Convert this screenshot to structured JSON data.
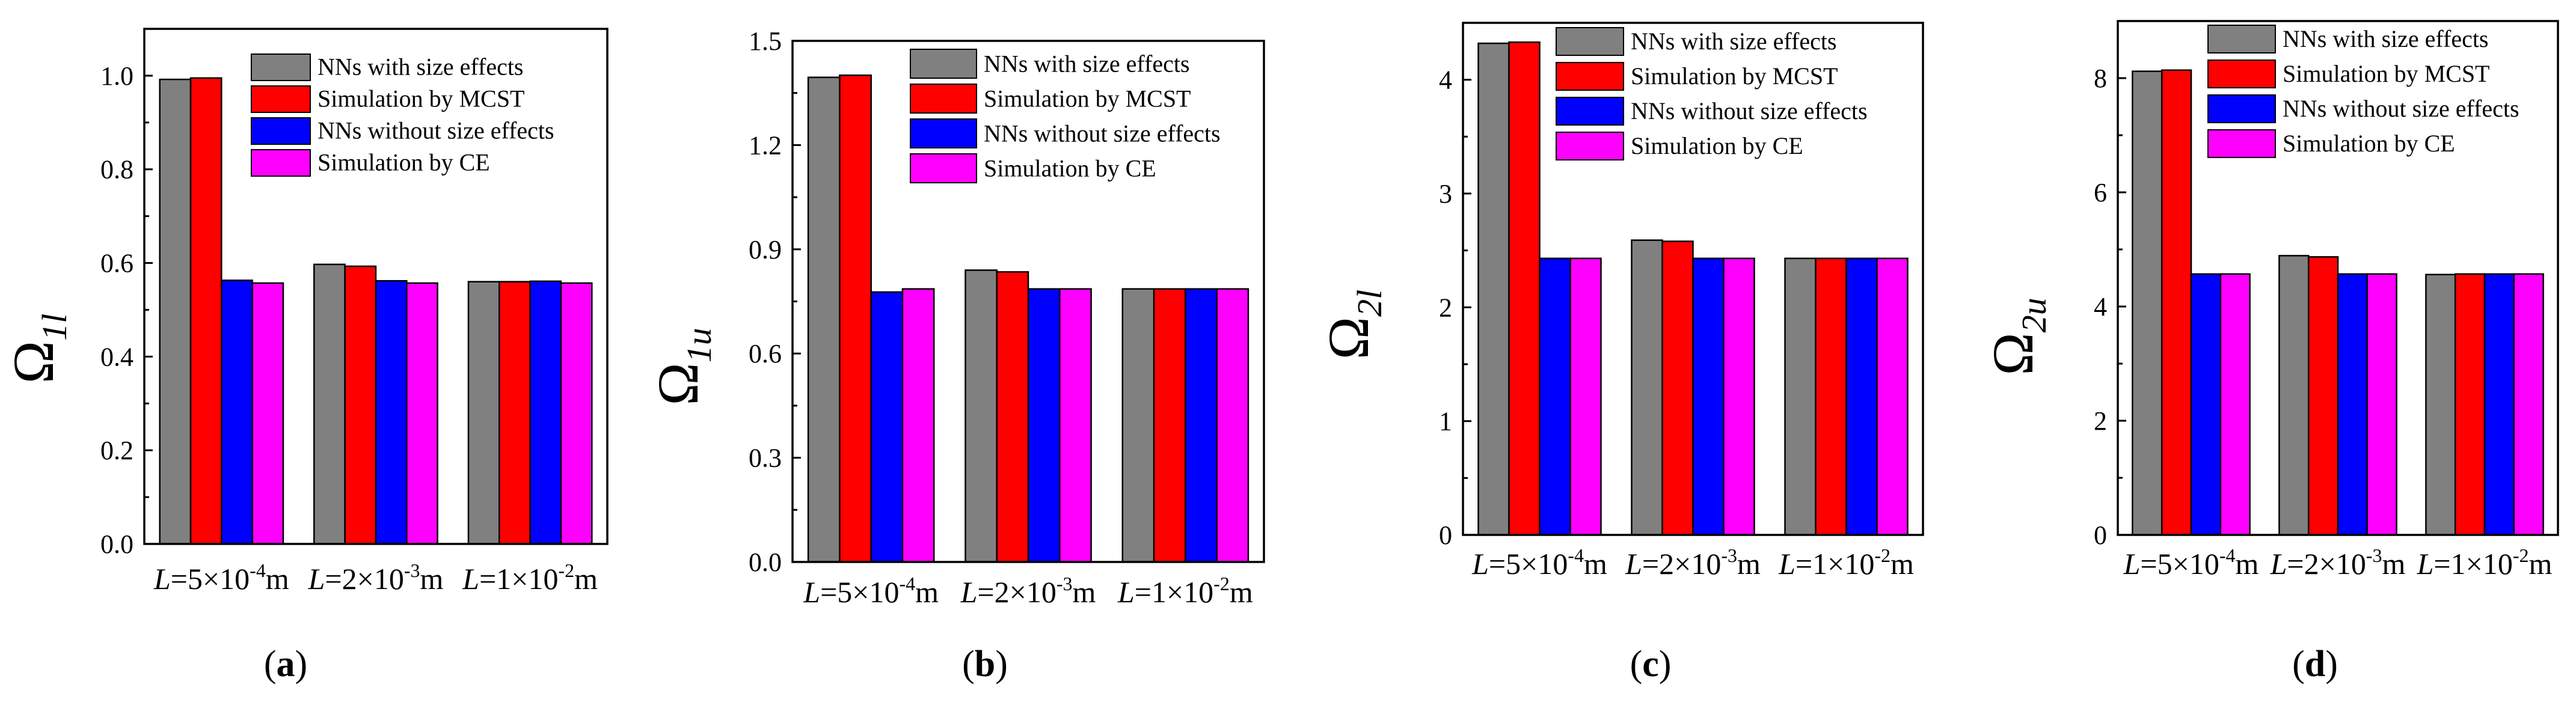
{
  "legend_labels": [
    "NNs with size effects",
    "Simulation by MCST",
    "NNs without size effects",
    "Simulation by CE"
  ],
  "series_colors": [
    "#808080",
    "#ff0000",
    "#0000ff",
    "#ff00ff"
  ],
  "chart_data": [
    {
      "type": "bar",
      "panel_label": "(a)",
      "ylabel": "Ω",
      "ylabel_sub": "1l",
      "categories": [
        "L=5×10⁻⁴m",
        "L=2×10⁻³m",
        "L=1×10⁻²m"
      ],
      "category_labels": [
        {
          "symbol": "L",
          "text": "=5×10",
          "exp": "-4",
          "unit": "m"
        },
        {
          "symbol": "L",
          "text": "=2×10",
          "exp": "-3",
          "unit": "m"
        },
        {
          "symbol": "L",
          "text": "=1×10",
          "exp": "-2",
          "unit": "m"
        }
      ],
      "ylim": [
        0,
        1.1
      ],
      "yticks": [
        0.0,
        0.2,
        0.4,
        0.6,
        0.8,
        1.0
      ],
      "ytick_labels": [
        "0.0",
        "0.2",
        "0.4",
        "0.6",
        "0.8",
        "1.0"
      ],
      "series": [
        {
          "name": "NNs with size effects",
          "values": [
            0.992,
            0.597,
            0.56
          ]
        },
        {
          "name": "Simulation by MCST",
          "values": [
            0.995,
            0.593,
            0.56
          ]
        },
        {
          "name": "NNs without size effects",
          "values": [
            0.563,
            0.562,
            0.561
          ]
        },
        {
          "name": "Simulation by CE",
          "values": [
            0.557,
            0.557,
            0.557
          ]
        }
      ],
      "legend_position": "top-right"
    },
    {
      "type": "bar",
      "panel_label": "(b)",
      "ylabel": "Ω",
      "ylabel_sub": "1u",
      "categories": [
        "L=5×10⁻⁴m",
        "L=2×10⁻³m",
        "L=1×10⁻²m"
      ],
      "category_labels": [
        {
          "symbol": "L",
          "text": "=5×10",
          "exp": "-4",
          "unit": "m"
        },
        {
          "symbol": "L",
          "text": "=2×10",
          "exp": "-3",
          "unit": "m"
        },
        {
          "symbol": "L",
          "text": "=1×10",
          "exp": "-2",
          "unit": "m"
        }
      ],
      "ylim": [
        0,
        1.5
      ],
      "yticks": [
        0.0,
        0.3,
        0.6,
        0.9,
        1.2,
        1.5
      ],
      "ytick_labels": [
        "0.0",
        "0.3",
        "0.6",
        "0.9",
        "1.2",
        "1.5"
      ],
      "series": [
        {
          "name": "NNs with size effects",
          "values": [
            1.395,
            0.84,
            0.786
          ]
        },
        {
          "name": "Simulation by MCST",
          "values": [
            1.401,
            0.835,
            0.786
          ]
        },
        {
          "name": "NNs without size effects",
          "values": [
            0.777,
            0.786,
            0.786
          ]
        },
        {
          "name": "Simulation by CE",
          "values": [
            0.786,
            0.786,
            0.786
          ]
        }
      ],
      "legend_position": "top-right"
    },
    {
      "type": "bar",
      "panel_label": "(c)",
      "ylabel": "Ω",
      "ylabel_sub": "2l",
      "categories": [
        "L=5×10⁻⁴m",
        "L=2×10⁻³m",
        "L=1×10⁻²m"
      ],
      "category_labels": [
        {
          "symbol": "L",
          "text": "=5×10",
          "exp": "-4",
          "unit": "m"
        },
        {
          "symbol": "L",
          "text": "=2×10",
          "exp": "-3",
          "unit": "m"
        },
        {
          "symbol": "L",
          "text": "=1×10",
          "exp": "-2",
          "unit": "m"
        }
      ],
      "ylim": [
        0,
        4.5
      ],
      "yticks": [
        0,
        1,
        2,
        3,
        4
      ],
      "ytick_labels": [
        "0",
        "1",
        "2",
        "3",
        "4"
      ],
      "series": [
        {
          "name": "NNs with size effects",
          "values": [
            4.32,
            2.59,
            2.43
          ]
        },
        {
          "name": "Simulation by MCST",
          "values": [
            4.33,
            2.58,
            2.43
          ]
        },
        {
          "name": "NNs without size effects",
          "values": [
            2.43,
            2.43,
            2.43
          ]
        },
        {
          "name": "Simulation by CE",
          "values": [
            2.43,
            2.43,
            2.43
          ]
        }
      ],
      "legend_position": "top-right"
    },
    {
      "type": "bar",
      "panel_label": "(d)",
      "ylabel": "Ω",
      "ylabel_sub": "2u",
      "categories": [
        "L=5×10⁻⁴m",
        "L=2×10⁻³m",
        "L=1×10⁻²m"
      ],
      "category_labels": [
        {
          "symbol": "L",
          "text": "=5×10",
          "exp": "-4",
          "unit": "m"
        },
        {
          "symbol": "L",
          "text": "=2×10",
          "exp": "-3",
          "unit": "m"
        },
        {
          "symbol": "L",
          "text": "=1×10",
          "exp": "-2",
          "unit": "m"
        }
      ],
      "ylim": [
        0,
        9
      ],
      "yticks": [
        0,
        2,
        4,
        6,
        8
      ],
      "ytick_labels": [
        "0",
        "2",
        "4",
        "6",
        "8"
      ],
      "series": [
        {
          "name": "NNs with size effects",
          "values": [
            8.12,
            4.89,
            4.56
          ]
        },
        {
          "name": "Simulation by MCST",
          "values": [
            8.14,
            4.87,
            4.57
          ]
        },
        {
          "name": "NNs without size effects",
          "values": [
            4.57,
            4.57,
            4.57
          ]
        },
        {
          "name": "Simulation by CE",
          "values": [
            4.57,
            4.57,
            4.57
          ]
        }
      ],
      "legend_position": "top-right"
    }
  ]
}
